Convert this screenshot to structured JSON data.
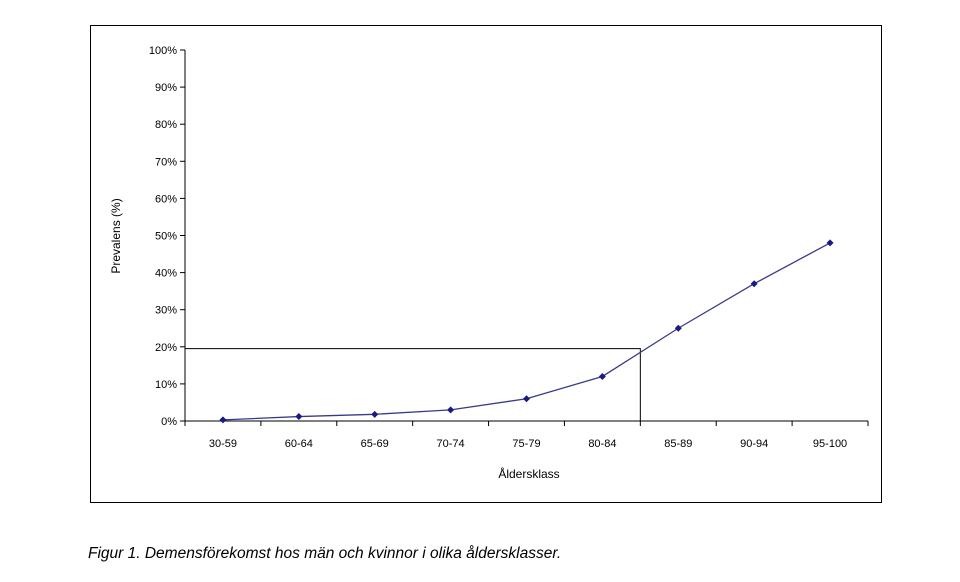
{
  "chart_data": {
    "type": "line",
    "categories": [
      "30-59",
      "60-64",
      "65-69",
      "70-74",
      "75-79",
      "80-84",
      "85-89",
      "90-94",
      "95-100"
    ],
    "values": [
      0.3,
      1.2,
      1.8,
      3,
      6,
      12,
      25,
      37,
      48
    ],
    "ylabel": "Prevalens (%)",
    "xlabel": "Åldersklass",
    "ylim": [
      0,
      100
    ],
    "yticks": [
      "0%",
      "10%",
      "20%",
      "30%",
      "40%",
      "50%",
      "60%",
      "70%",
      "80%",
      "90%",
      "100%"
    ],
    "reference_line": {
      "y": 19.5,
      "x_between": [
        "80-84",
        "85-89"
      ]
    },
    "line_color": "#3a3a8c",
    "marker_color": "#1a1a80",
    "grid": false,
    "legend": "none"
  },
  "caption": "Figur 1. Demensförekomst hos män och kvinnor i olika åldersklasser."
}
